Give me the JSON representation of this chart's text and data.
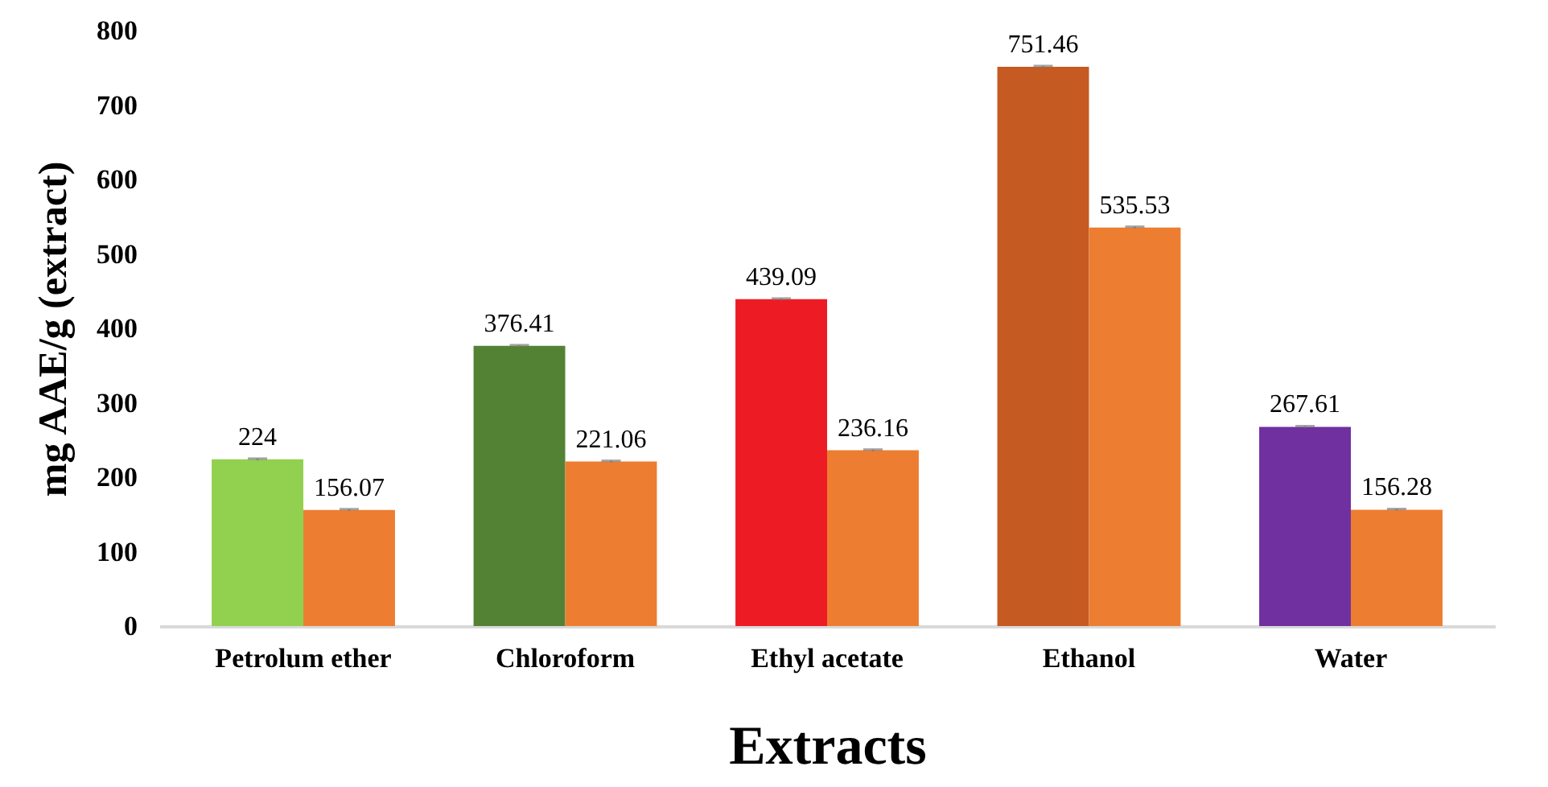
{
  "chart_data": {
    "type": "bar",
    "xlabel": "Extracts",
    "ylabel": "mg AAE/g (extract)",
    "categories": [
      "Petrolum ether",
      "Chloroform",
      "Ethyl acetate",
      "Ethanol",
      "Water"
    ],
    "series": [
      {
        "colors": [
          "#92d050",
          "#548235",
          "#ed1c24",
          "#c55a22",
          "#7030a0"
        ],
        "values": [
          224,
          376.41,
          439.09,
          751.46,
          267.61
        ],
        "errors": [
          1,
          1,
          1,
          1,
          1
        ]
      },
      {
        "color": "#ed7d31",
        "values": [
          156.07,
          221.06,
          236.16,
          535.53,
          156.28
        ],
        "errors": [
          1,
          1,
          1,
          1,
          1
        ]
      }
    ],
    "ylim": [
      0,
      800
    ],
    "yticks": [
      0,
      100,
      200,
      300,
      400,
      500,
      600,
      700,
      800
    ],
    "data_labels": true,
    "grid": false
  }
}
